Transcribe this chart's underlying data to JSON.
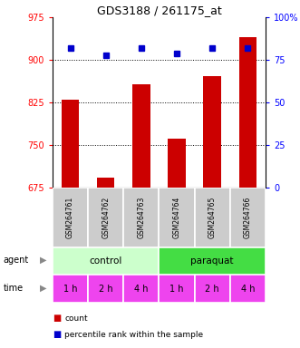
{
  "title": "GDS3188 / 261175_at",
  "samples": [
    "GSM264761",
    "GSM264762",
    "GSM264763",
    "GSM264764",
    "GSM264765",
    "GSM264766"
  ],
  "counts": [
    830,
    693,
    858,
    762,
    872,
    940
  ],
  "percentiles": [
    82,
    78,
    82,
    79,
    82,
    82
  ],
  "ylim_left": [
    675,
    975
  ],
  "ylim_right": [
    0,
    100
  ],
  "yticks_left": [
    675,
    750,
    825,
    900,
    975
  ],
  "yticks_right": [
    0,
    25,
    50,
    75,
    100
  ],
  "bar_color": "#cc0000",
  "dot_color": "#0000cc",
  "bar_bottom": 675,
  "agent_colors": [
    "#ccffcc",
    "#44dd44"
  ],
  "agent_labels": [
    "control",
    "paraquat"
  ],
  "time_labels": [
    "1 h",
    "2 h",
    "4 h",
    "1 h",
    "2 h",
    "4 h"
  ],
  "time_color": "#ee44ee",
  "sample_bg_color": "#cccccc",
  "legend_count_color": "#cc0000",
  "legend_dot_color": "#0000cc"
}
